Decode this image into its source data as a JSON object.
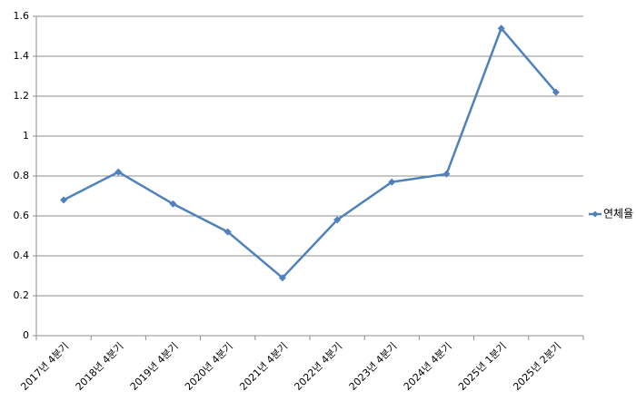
{
  "chart_data": {
    "type": "line",
    "categories": [
      "2017년 4분기",
      "2018년 4분기",
      "2019년 4분기",
      "2020년 4분기",
      "2021년 4분기",
      "2022년 4분기",
      "2023년 4분기",
      "2024년 4분기",
      "2025년 1분기",
      "2025년 2분기"
    ],
    "series": [
      {
        "name": "연체율",
        "color": "#4f81bd",
        "values": [
          0.68,
          0.82,
          0.66,
          0.52,
          0.29,
          0.58,
          0.77,
          0.81,
          1.54,
          1.22
        ]
      }
    ],
    "ylim": [
      0,
      1.6
    ],
    "yticks": [
      0,
      0.2,
      0.4,
      0.6,
      0.8,
      1,
      1.2,
      1.4,
      1.6
    ],
    "grid": true,
    "legend": "right"
  }
}
